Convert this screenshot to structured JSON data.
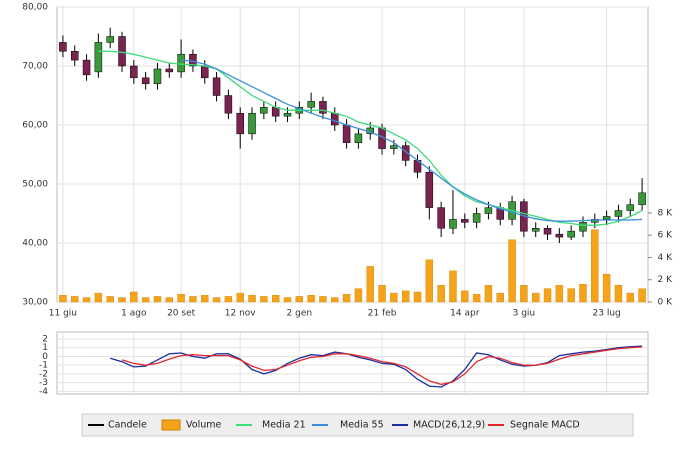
{
  "chart_data": [
    {
      "type": "candlestick",
      "categories": [
        "11 giu",
        null,
        null,
        null,
        null,
        null,
        "1 ago",
        null,
        null,
        null,
        "20 set",
        null,
        null,
        null,
        null,
        "12 nov",
        null,
        null,
        null,
        null,
        "2 gen",
        null,
        null,
        null,
        null,
        null,
        null,
        "21 feb",
        null,
        null,
        null,
        null,
        null,
        null,
        "14 apr",
        null,
        null,
        null,
        null,
        "3 giu",
        null,
        null,
        null,
        null,
        null,
        null,
        "23 lug",
        null,
        null,
        null
      ],
      "series": [
        {
          "name": "Candele",
          "color": "#000000",
          "up_color": "#3a9a3a",
          "down_color": "#7b2350",
          "open": [
            74,
            72.5,
            71,
            69,
            74,
            75,
            70,
            68,
            67,
            69.5,
            69,
            72,
            70,
            68,
            65,
            62,
            58.5,
            62,
            63,
            61.5,
            62,
            63,
            64,
            62,
            60,
            57,
            58.5,
            59.5,
            56,
            56.5,
            54,
            52,
            46,
            42.5,
            44,
            43.5,
            45,
            46,
            44,
            47,
            42,
            42.5,
            41.5,
            41,
            42,
            43.5,
            44,
            44.5,
            45.5,
            46.5
          ],
          "high": [
            75.2,
            73.5,
            72,
            75.5,
            76.5,
            75.8,
            71,
            69,
            70.5,
            70.5,
            74.5,
            72.8,
            71,
            69,
            66,
            63,
            63,
            64,
            64,
            63,
            64,
            65.5,
            64.8,
            63,
            61,
            59.5,
            60.5,
            60.2,
            57.5,
            57.2,
            55,
            53,
            47,
            49,
            45,
            46,
            47,
            46.8,
            48,
            47.5,
            43.5,
            43,
            42.5,
            43,
            44.5,
            45,
            45.5,
            46.5,
            47.5,
            51
          ],
          "low": [
            71.5,
            70,
            67.5,
            68,
            73,
            69,
            67,
            66,
            66,
            68,
            68,
            69,
            67,
            64,
            61,
            56,
            57.5,
            61,
            60.5,
            60.5,
            61,
            62,
            61,
            59,
            56,
            56,
            57.5,
            55,
            55,
            53,
            51,
            44,
            41,
            41.5,
            42.5,
            42.5,
            44,
            43,
            43,
            41,
            41,
            40.5,
            40,
            40.5,
            41,
            42.5,
            43,
            43.5,
            44.5,
            45.5
          ],
          "close": [
            72.5,
            71,
            68.5,
            74,
            75,
            70,
            68,
            67,
            69.5,
            69,
            72,
            70,
            68,
            65,
            62,
            58.5,
            62,
            63,
            61.5,
            62,
            63,
            64,
            62,
            60,
            57,
            58.5,
            59.5,
            56,
            56.5,
            54,
            52,
            46,
            42.5,
            44,
            43.5,
            45,
            46,
            44,
            47,
            42,
            42.5,
            41.5,
            41,
            42,
            43.5,
            44,
            44.5,
            45.5,
            46.5,
            48.5
          ]
        },
        {
          "name": "Volume",
          "color": "#f5a31a",
          "mark": "bar",
          "axis": "y2",
          "values": [
            0.6,
            0.5,
            0.4,
            0.8,
            0.5,
            0.4,
            0.9,
            0.4,
            0.5,
            0.4,
            0.7,
            0.5,
            0.6,
            0.4,
            0.5,
            0.8,
            0.6,
            0.5,
            0.6,
            0.4,
            0.5,
            0.6,
            0.5,
            0.4,
            0.7,
            1.2,
            3.2,
            1.5,
            0.8,
            1,
            0.9,
            3.8,
            1.5,
            2.8,
            1,
            0.7,
            1.5,
            0.8,
            5.6,
            1.5,
            0.8,
            1.2,
            1.5,
            1.2,
            1.6,
            6.5,
            2.5,
            1.5,
            0.8,
            1.2
          ]
        },
        {
          "name": "Media 21",
          "color": "#3fdc7a",
          "values": [
            null,
            null,
            null,
            72.5,
            72.5,
            72.3,
            72,
            71.5,
            71,
            70.5,
            70.3,
            70.2,
            70,
            69.5,
            68,
            66.5,
            65,
            64,
            63,
            62.5,
            62.5,
            62.5,
            62.5,
            62,
            61.5,
            60.5,
            60,
            59.5,
            58.5,
            57.5,
            56,
            54,
            51.5,
            49.5,
            48,
            47,
            46.5,
            46,
            45.5,
            45,
            44.5,
            44,
            43.5,
            43.3,
            43,
            43,
            43.2,
            43.7,
            44.5,
            45.5
          ]
        },
        {
          "name": "Media 55",
          "color": "#3b8fdc",
          "values": [
            null,
            null,
            null,
            null,
            null,
            null,
            null,
            null,
            null,
            null,
            71,
            70.8,
            70.3,
            69.5,
            68.5,
            67.5,
            66.5,
            65.5,
            64.5,
            63.5,
            62.8,
            62,
            61.3,
            60.7,
            60,
            59.4,
            58.8,
            58,
            57,
            55.5,
            54,
            52.5,
            51,
            49.5,
            48.3,
            47.3,
            46.5,
            45.8,
            45.2,
            44.6,
            44.1,
            43.8,
            43.7,
            43.7,
            43.8,
            43.9,
            43.9,
            43.9,
            43.9,
            44
          ]
        }
      ],
      "ylim": [
        30,
        80
      ],
      "yticks": [
        {
          "value": 80,
          "label": "80,00"
        },
        {
          "value": 70,
          "label": "70,00"
        },
        {
          "value": 60,
          "label": "60,00"
        },
        {
          "value": 50,
          "label": "50,00"
        },
        {
          "value": 40,
          "label": "40,00"
        },
        {
          "value": 30,
          "label": "30,00"
        }
      ],
      "y2lim": [
        0,
        26.5
      ],
      "y2ticks": [
        {
          "value": 0,
          "label": "0 K"
        },
        {
          "value": 2,
          "label": "2 K"
        },
        {
          "value": 4,
          "label": "4 K"
        },
        {
          "value": 6,
          "label": "6 K"
        },
        {
          "value": 8,
          "label": "8 K"
        }
      ],
      "grid": true
    },
    {
      "type": "line",
      "series": [
        {
          "name": "MACD(26,12,9)",
          "color": "#1a2fa0",
          "values": [
            null,
            null,
            null,
            null,
            -0.2,
            -0.6,
            -1.2,
            -1.1,
            -0.4,
            0.3,
            0.4,
            0,
            -0.2,
            0.3,
            0.3,
            -0.3,
            -1.5,
            -2,
            -1.6,
            -0.8,
            -0.2,
            0.2,
            0.1,
            0.5,
            0.3,
            -0.1,
            -0.4,
            -0.8,
            -0.9,
            -1.5,
            -2.6,
            -3.4,
            -3.5,
            -2.8,
            -1.5,
            0.4,
            0.2,
            -0.4,
            -0.9,
            -1.1,
            -1.0,
            -0.7,
            0.1,
            0.3,
            0.5,
            0.6,
            0.8,
            1.0,
            1.1,
            1.2
          ]
        },
        {
          "name": "Segnale MACD",
          "color": "#e0282e",
          "values": [
            null,
            null,
            null,
            null,
            null,
            -0.4,
            -0.8,
            -1.0,
            -0.8,
            -0.3,
            0.1,
            0.2,
            0.1,
            0.1,
            0.1,
            -0.4,
            -1.1,
            -1.6,
            -1.5,
            -1.0,
            -0.5,
            -0.1,
            0,
            0.3,
            0.3,
            0.1,
            -0.2,
            -0.6,
            -0.8,
            -1.2,
            -2.0,
            -2.8,
            -3.2,
            -2.9,
            -2.0,
            -0.6,
            0,
            -0.2,
            -0.7,
            -1.0,
            -1.0,
            -0.8,
            -0.3,
            0.1,
            0.3,
            0.5,
            0.7,
            0.9,
            1.0,
            1.1
          ]
        }
      ],
      "ylim": [
        -4.3,
        2.8
      ],
      "yticks": [
        2,
        1,
        0,
        -1,
        -2,
        -3,
        -4
      ],
      "grid": true
    }
  ]
}
